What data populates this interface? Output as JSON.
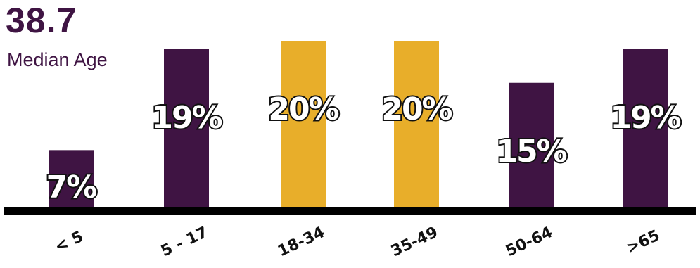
{
  "summary": {
    "value": "38.7",
    "label": "Median Age"
  },
  "colors": {
    "purple": "#3f1443",
    "gold": "#e8ae2a",
    "baseline": "#000000"
  },
  "chart_data": {
    "type": "bar",
    "categories": [
      "< 5",
      "5 - 17",
      "18-34",
      "35-49",
      "50-64",
      ">65"
    ],
    "values": [
      7,
      19,
      20,
      20,
      15,
      19
    ],
    "value_labels": [
      "7%",
      "19%",
      "20%",
      "20%",
      "15%",
      "19%"
    ],
    "bar_colors": [
      "#3f1443",
      "#3f1443",
      "#e8ae2a",
      "#e8ae2a",
      "#3f1443",
      "#3f1443"
    ],
    "ylim": [
      0,
      20
    ],
    "grid": false,
    "legend": "none"
  }
}
